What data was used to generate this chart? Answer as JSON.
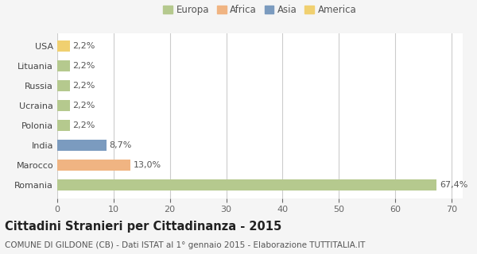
{
  "categories": [
    "Romania",
    "Marocco",
    "India",
    "Polonia",
    "Ucraina",
    "Russia",
    "Lituania",
    "USA"
  ],
  "values": [
    67.4,
    13.0,
    8.7,
    2.2,
    2.2,
    2.2,
    2.2,
    2.2
  ],
  "labels": [
    "67,4%",
    "13,0%",
    "8,7%",
    "2,2%",
    "2,2%",
    "2,2%",
    "2,2%",
    "2,2%"
  ],
  "colors": [
    "#b5c98e",
    "#f0b482",
    "#7b9bbf",
    "#b5c98e",
    "#b5c98e",
    "#b5c98e",
    "#b5c98e",
    "#f0d070"
  ],
  "legend_labels": [
    "Europa",
    "Africa",
    "Asia",
    "America"
  ],
  "legend_colors": [
    "#b5c98e",
    "#f0b482",
    "#7b9bbf",
    "#f0d070"
  ],
  "title": "Cittadini Stranieri per Cittadinanza - 2015",
  "subtitle": "COMUNE DI GILDONE (CB) - Dati ISTAT al 1° gennaio 2015 - Elaborazione TUTTITALIA.IT",
  "xlim": [
    0,
    72
  ],
  "xticks": [
    0,
    10,
    20,
    30,
    40,
    50,
    60,
    70
  ],
  "background_color": "#f5f5f5",
  "plot_bg_color": "#ffffff",
  "grid_color": "#cccccc",
  "bar_height": 0.55,
  "title_fontsize": 10.5,
  "subtitle_fontsize": 7.5,
  "label_fontsize": 8,
  "tick_fontsize": 8,
  "legend_fontsize": 8.5
}
